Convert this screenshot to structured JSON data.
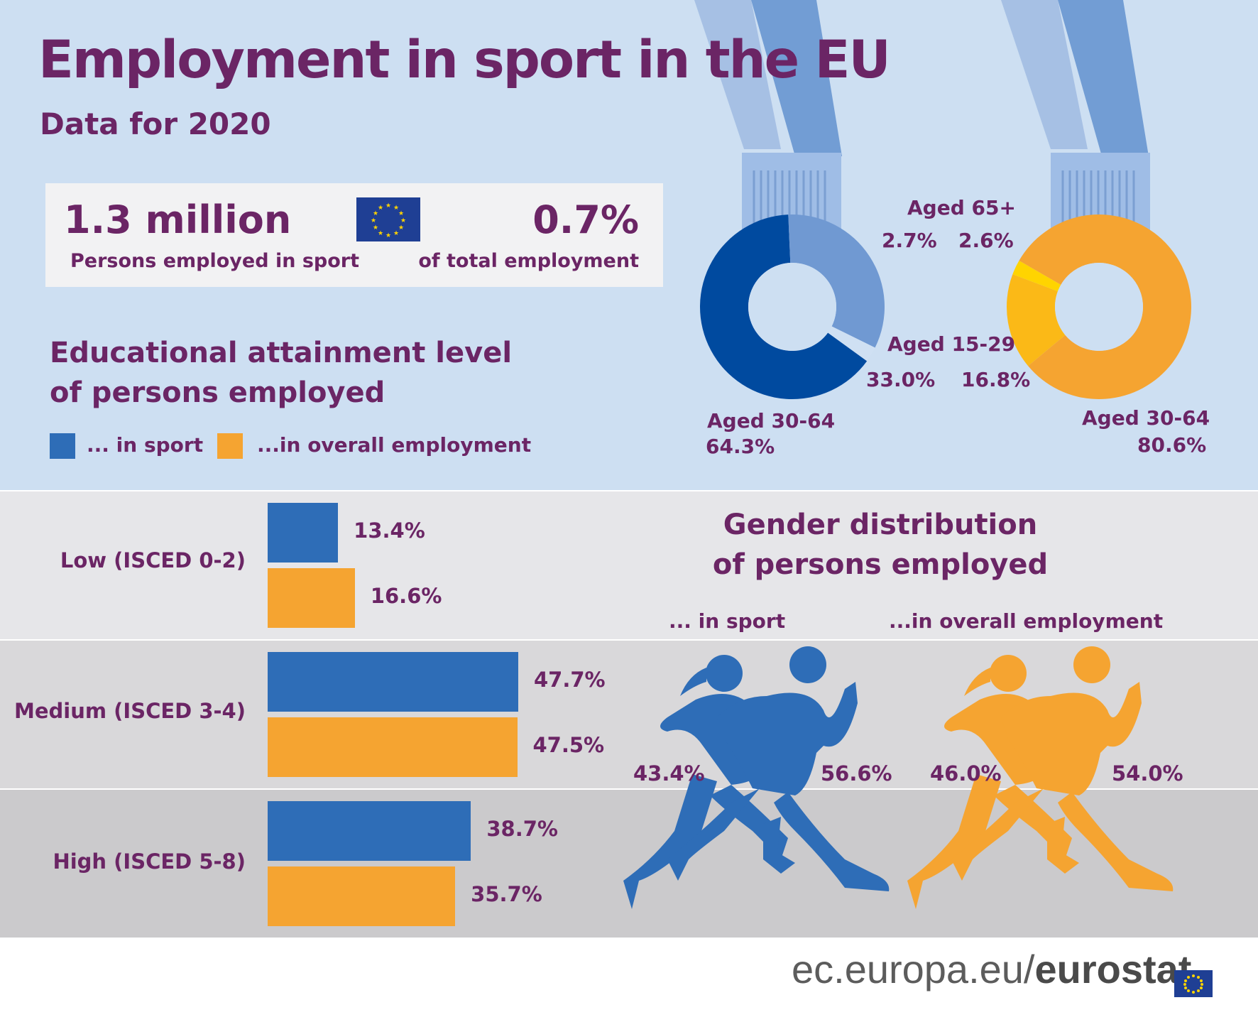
{
  "title": "Employment in sport in the EU",
  "subtitle": "Data for 2020",
  "stats": {
    "persons_value": "1.3 million",
    "persons_label": "Persons employed in sport",
    "share_value": "0.7%",
    "share_label": "of total employment"
  },
  "education": {
    "heading_line1": "Educational attainment level",
    "heading_line2": "of persons employed",
    "legend_sport": "... in sport",
    "legend_overall": "...in overall employment"
  },
  "gender": {
    "heading_line1": "Gender distribution",
    "heading_line2": "of persons employed",
    "sport_label": "... in sport",
    "overall_label": "...in overall employment",
    "sport_female": "43.4%",
    "sport_male": "56.6%",
    "overall_female": "46.0%",
    "overall_male": "54.0%"
  },
  "age": {
    "label_65": "Aged 65+",
    "label_15": "Aged 15-29",
    "label_30": "Aged 30-64",
    "sport_65": "2.7%",
    "overall_65": "2.6%",
    "sport_15": "33.0%",
    "overall_15": "16.8%",
    "sport_30": "64.3%",
    "overall_30": "80.6%"
  },
  "colors": {
    "sport": "#2e6db7",
    "overall": "#f5a431",
    "purple": "#6b2565",
    "sport_dark": "#004a9f",
    "sport_light": "#7099d2",
    "overall_yellow": "#fbb917",
    "overall_gold": "#ffd400"
  },
  "footer": {
    "prefix": "ec.europa.eu/",
    "brand": "eurostat"
  },
  "chart_data": [
    {
      "type": "bar",
      "title": "Educational attainment level of persons employed",
      "categories": [
        "Low (ISCED 0-2)",
        "Medium (ISCED 3-4)",
        "High (ISCED 5-8)"
      ],
      "series": [
        {
          "name": "... in sport",
          "values": [
            13.4,
            47.7,
            38.7
          ],
          "labels": [
            "13.4%",
            "47.7%",
            "38.7%"
          ]
        },
        {
          "name": "...in overall employment",
          "values": [
            16.6,
            47.5,
            35.7
          ],
          "labels": [
            "16.6%",
            "47.5%",
            "35.7%"
          ]
        }
      ]
    },
    {
      "type": "pie",
      "title": "",
      "categories": [
        "Aged 30-64",
        "Aged 15-29",
        "Aged 65+"
      ],
      "series": [
        {
          "name": "... in sport",
          "values": [
            64.3,
            33.0,
            2.7
          ]
        },
        {
          "name": "...in overall employment",
          "values": [
            80.6,
            16.8,
            2.6
          ]
        }
      ]
    },
    {
      "type": "bar",
      "title": "Gender distribution of persons employed",
      "categories": [
        "... in sport",
        "...in overall employment"
      ],
      "series": [
        {
          "name": "",
          "values": [
            43.4,
            46.0
          ]
        },
        {
          "name": "",
          "values": [
            56.6,
            54.0
          ]
        }
      ]
    }
  ]
}
